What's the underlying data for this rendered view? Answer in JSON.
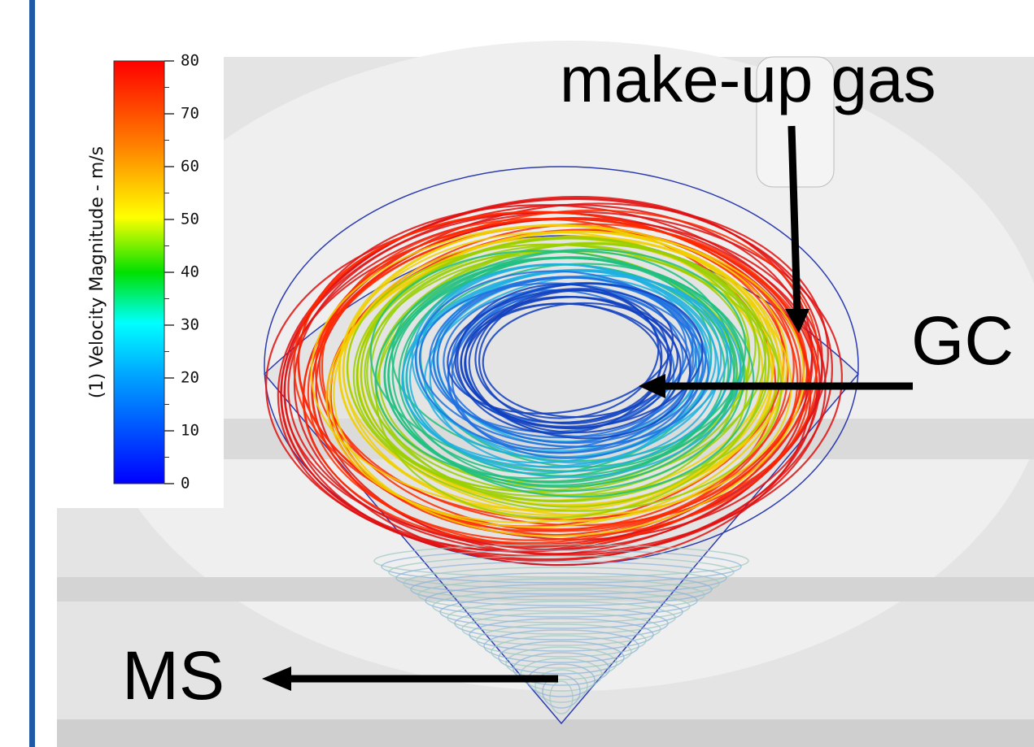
{
  "colorbar": {
    "label": "(1) Velocity Magnitude - m/s",
    "lim": [
      0,
      80
    ],
    "ticks": [
      0,
      10,
      20,
      30,
      40,
      50,
      60,
      70,
      80
    ]
  },
  "annotations": {
    "makeup": "make-up gas",
    "gc": "GC",
    "ms": "MS"
  }
}
